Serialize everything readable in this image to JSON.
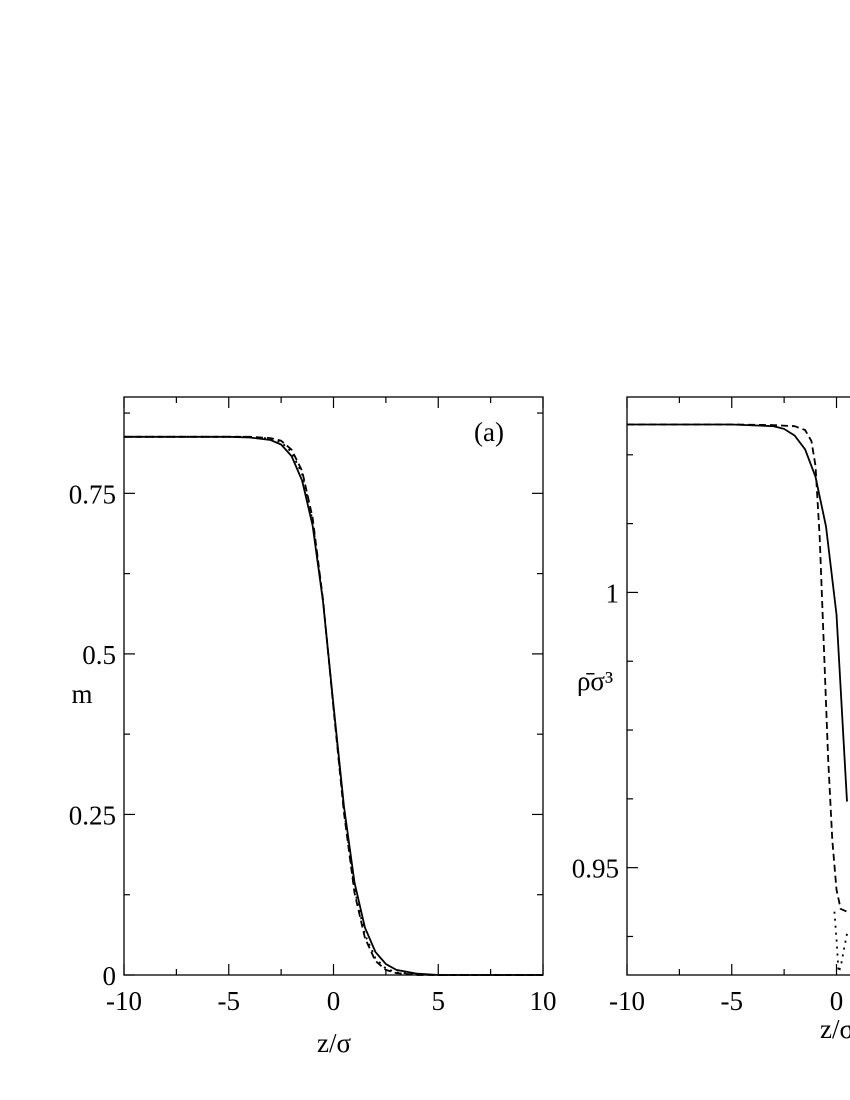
{
  "chart_data": [
    {
      "type": "line",
      "panel_label": "(a)",
      "xlabel": "z/σ",
      "ylabel": "m",
      "xlim": [
        -10,
        10
      ],
      "ylim": [
        0,
        0.9
      ],
      "x_ticks": [
        -10,
        -5,
        0,
        5,
        10
      ],
      "x_tick_labels": [
        "-10",
        "-5",
        "0",
        "5",
        "10"
      ],
      "y_ticks": [
        0,
        0.25,
        0.5,
        0.75
      ],
      "y_tick_labels": [
        "0",
        "0.25",
        "0.5",
        "0.75"
      ],
      "grid": false,
      "series": [
        {
          "style": "solid",
          "x": [
            -10,
            -5,
            -4,
            -3,
            -2.5,
            -2,
            -1.5,
            -1,
            -0.5,
            0,
            0.5,
            1,
            1.5,
            2,
            2.5,
            3,
            4,
            5,
            10
          ],
          "y": [
            0.838,
            0.838,
            0.837,
            0.833,
            0.826,
            0.808,
            0.77,
            0.7,
            0.582,
            0.42,
            0.262,
            0.144,
            0.074,
            0.036,
            0.017,
            0.008,
            0.002,
            0.0,
            0.0
          ]
        },
        {
          "style": "dashed",
          "x": [
            -10,
            -5,
            -4,
            -3,
            -2.5,
            -2,
            -1.5,
            -1,
            -0.5,
            0,
            0.5,
            1,
            1.5,
            2,
            2.5,
            3,
            4,
            5,
            10
          ],
          "y": [
            0.838,
            0.838,
            0.838,
            0.836,
            0.832,
            0.818,
            0.785,
            0.712,
            0.585,
            0.415,
            0.252,
            0.128,
            0.058,
            0.022,
            0.008,
            0.003,
            0.0,
            0.0,
            0.0
          ]
        },
        {
          "style": "dotted",
          "x": [
            -10,
            -5,
            -4,
            -3,
            -2.5,
            -2,
            -1.5,
            -1,
            -0.5,
            0,
            0.5,
            1,
            1.5,
            2,
            2.5,
            3,
            4,
            5,
            10
          ],
          "y": [
            0.838,
            0.838,
            0.838,
            0.835,
            0.83,
            0.814,
            0.78,
            0.707,
            0.582,
            0.417,
            0.257,
            0.134,
            0.063,
            0.026,
            0.01,
            0.004,
            0.001,
            0.0,
            0.0
          ]
        }
      ]
    },
    {
      "type": "line",
      "xlabel": "z/σ",
      "ylabel": "ρ̄σ³",
      "xlim": [
        -10,
        10
      ],
      "ylim": [
        0.9305,
        1.0355
      ],
      "x_ticks": [
        -10,
        -5,
        0
      ],
      "x_tick_labels": [
        "-10",
        "-5",
        "0"
      ],
      "y_ticks": [
        0.95,
        1.0
      ],
      "y_tick_labels": [
        "0.95",
        "1"
      ],
      "grid": false,
      "series": [
        {
          "style": "solid",
          "x": [
            -10,
            -5,
            -3,
            -2.5,
            -2,
            -1.5,
            -1,
            -0.5,
            0,
            0.5
          ],
          "y": [
            1.0305,
            1.0305,
            1.0302,
            1.0297,
            1.0285,
            1.026,
            1.021,
            1.012,
            0.996,
            0.962
          ]
        },
        {
          "style": "dashed",
          "x": [
            -10,
            -5,
            -3,
            -2,
            -1.5,
            -1.2,
            -1,
            -0.8,
            -0.6,
            -0.4,
            -0.2,
            0,
            0.2,
            0.5
          ],
          "y": [
            1.0305,
            1.0305,
            1.0304,
            1.0302,
            1.0295,
            1.0275,
            1.023,
            1.01,
            0.99,
            0.97,
            0.955,
            0.946,
            0.9425,
            0.942
          ]
        },
        {
          "style": "dotted",
          "x": [
            -0.1,
            0,
            0.1,
            0.2,
            0.35,
            0.5
          ],
          "y": [
            0.942,
            0.937,
            0.931,
            0.932,
            0.935,
            0.938
          ]
        }
      ]
    }
  ]
}
